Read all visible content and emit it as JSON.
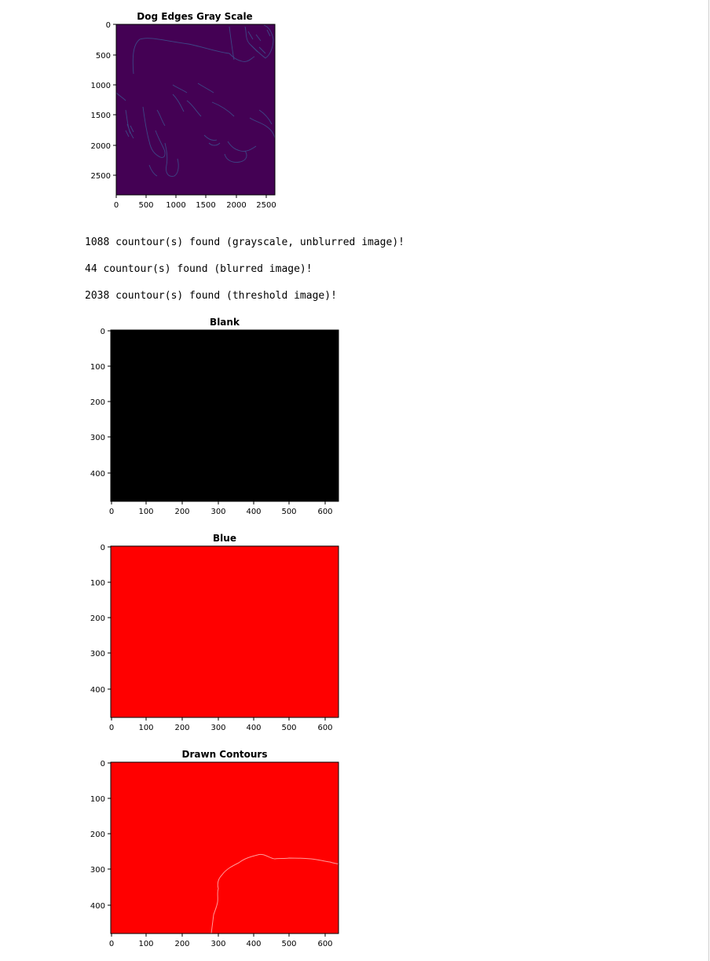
{
  "figures": {
    "dog_edges": {
      "title": "Dog Edges Gray Scale",
      "image_desc": "dog-edges-image",
      "x_ticks": [
        "0",
        "500",
        "1000",
        "1500",
        "2000",
        "2500"
      ],
      "y_ticks": [
        "0",
        "500",
        "1000",
        "1500",
        "2000",
        "2500"
      ],
      "colormap_bg": "#440154",
      "edge_color": "#3b528b"
    },
    "blank": {
      "title": "Blank",
      "fill": "#000000",
      "x_ticks": [
        "0",
        "100",
        "200",
        "300",
        "400",
        "500",
        "600"
      ],
      "y_ticks": [
        "0",
        "100",
        "200",
        "300",
        "400"
      ]
    },
    "blue": {
      "title": "Blue",
      "fill": "#ff0000",
      "x_ticks": [
        "0",
        "100",
        "200",
        "300",
        "400",
        "500",
        "600"
      ],
      "y_ticks": [
        "0",
        "100",
        "200",
        "300",
        "400"
      ]
    },
    "drawn_contours": {
      "title": "Drawn Contours",
      "fill": "#ff0000",
      "contour_color": "#ff9a9a",
      "x_ticks": [
        "0",
        "100",
        "200",
        "300",
        "400",
        "500",
        "600"
      ],
      "y_ticks": [
        "0",
        "100",
        "200",
        "300",
        "400"
      ]
    }
  },
  "output": {
    "line1": "1088 countour(s) found (grayscale, unblurred image)!",
    "line2": "44 countour(s) found (blurred image)!",
    "line3": "2038 countour(s) found (threshold image)!"
  }
}
